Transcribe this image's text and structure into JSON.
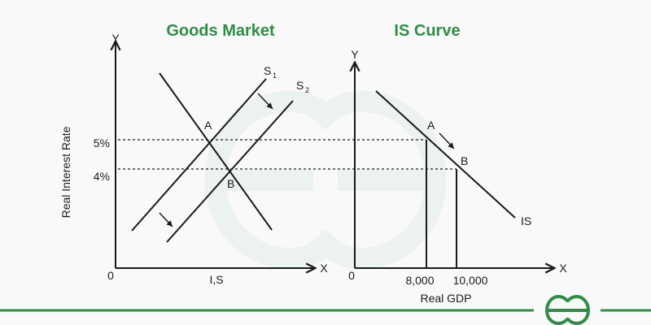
{
  "left_panel": {
    "title": "Goods Market",
    "y_axis": "Y",
    "x_axis": "X",
    "origin": "0",
    "x_label": "I,S",
    "y_label": "Real Interest Rate",
    "rate_high": "5%",
    "rate_low": "4%",
    "curve_s1": "S",
    "curve_s1_sub": "1",
    "curve_s2": "S",
    "curve_s2_sub": "2",
    "point_a": "A",
    "point_b": "B"
  },
  "right_panel": {
    "title": "IS Curve",
    "y_axis": "Y",
    "x_axis": "X",
    "origin": "0",
    "x_label": "Real GDP",
    "gdp_low": "8,000",
    "gdp_high": "10,000",
    "curve_label": "IS",
    "point_a": "A",
    "point_b": "B"
  },
  "brand": {
    "accent": "#2f8d46",
    "logo_icon": "geeksforgeeks-logo-icon",
    "watermark_icon": "geeksforgeeks-watermark-icon"
  }
}
